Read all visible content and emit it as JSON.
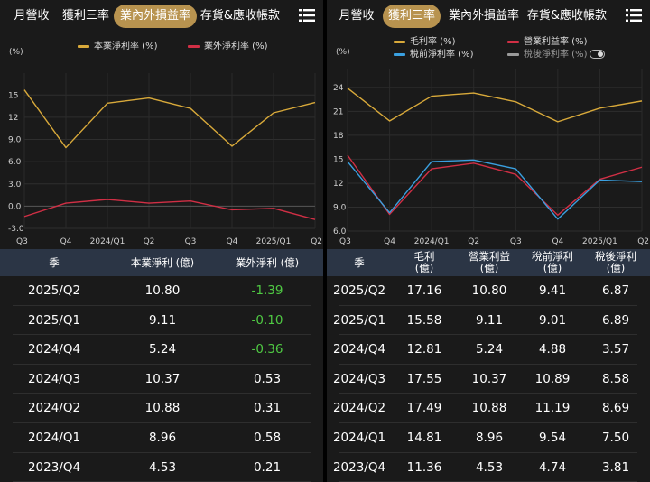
{
  "colors": {
    "accent": "#b8934f",
    "gold": "#d8a93a",
    "red": "#d12f45",
    "blue": "#3aa0e0",
    "gray": "#9a9a9a",
    "negative": "#4fc943",
    "header_bg": "#2b3545"
  },
  "left": {
    "tabs": [
      "月營收",
      "獲利三率",
      "業內外損益率",
      "存貨&應收帳款"
    ],
    "active_tab": 2,
    "menu_icon": "list-menu-icon",
    "legend": [
      {
        "label": "本業淨利率 (%)",
        "color": "#d8a93a"
      },
      {
        "label": "業外淨利率 (%)",
        "color": "#d12f45"
      }
    ],
    "unit": "(%)",
    "table": {
      "headers": [
        "季",
        "本業淨利 (億)",
        "業外淨利 (億)"
      ],
      "rows": [
        {
          "q": "2025/Q2",
          "a": "10.80",
          "b": "-1.39",
          "neg": true
        },
        {
          "q": "2025/Q1",
          "a": "9.11",
          "b": "-0.10",
          "neg": true
        },
        {
          "q": "2024/Q4",
          "a": "5.24",
          "b": "-0.36",
          "neg": true
        },
        {
          "q": "2024/Q3",
          "a": "10.37",
          "b": "0.53",
          "neg": false
        },
        {
          "q": "2024/Q2",
          "a": "10.88",
          "b": "0.31",
          "neg": false
        },
        {
          "q": "2024/Q1",
          "a": "8.96",
          "b": "0.58",
          "neg": false
        },
        {
          "q": "2023/Q4",
          "a": "4.53",
          "b": "0.21",
          "neg": false
        }
      ]
    }
  },
  "right": {
    "tabs": [
      "月營收",
      "獲利三率",
      "業內外損益率",
      "存貨&應收帳款"
    ],
    "active_tab": 1,
    "menu_icon": "list-menu-icon",
    "legend": [
      {
        "label": "毛利率 (%)",
        "color": "#d8a93a"
      },
      {
        "label": "營業利益率 (%)",
        "color": "#d12f45"
      },
      {
        "label": "稅前淨利率 (%)",
        "color": "#3aa0e0"
      },
      {
        "label": "稅後淨利率 (%)",
        "color": "#9a9a9a"
      }
    ],
    "unit": "(%)",
    "table": {
      "headers": [
        "季",
        "毛利\n(億)",
        "營業利益\n(億)",
        "稅前淨利\n(億)",
        "稅後淨利\n(億)"
      ],
      "rows": [
        [
          "2025/Q2",
          "17.16",
          "10.80",
          "9.41",
          "6.87"
        ],
        [
          "2025/Q1",
          "15.58",
          "9.11",
          "9.01",
          "6.89"
        ],
        [
          "2024/Q4",
          "12.81",
          "5.24",
          "4.88",
          "3.57"
        ],
        [
          "2024/Q3",
          "17.55",
          "10.37",
          "10.89",
          "8.58"
        ],
        [
          "2024/Q2",
          "17.49",
          "10.88",
          "11.19",
          "8.69"
        ],
        [
          "2024/Q1",
          "14.81",
          "8.96",
          "9.54",
          "7.50"
        ],
        [
          "2023/Q4",
          "11.36",
          "4.53",
          "4.74",
          "3.81"
        ]
      ]
    }
  },
  "chart_data": [
    {
      "type": "line",
      "x": [
        "Q3",
        "Q4",
        "2024/Q1",
        "Q2",
        "Q3",
        "Q4",
        "2025/Q1",
        "Q2"
      ],
      "series": [
        {
          "name": "本業淨利率 (%)",
          "values": [
            15.7,
            7.9,
            13.9,
            14.6,
            13.2,
            8.1,
            12.6,
            14.0
          ]
        },
        {
          "name": "業外淨利率 (%)",
          "values": [
            -1.4,
            0.4,
            0.9,
            0.4,
            0.7,
            -0.5,
            -0.3,
            -1.8
          ]
        }
      ],
      "yticks": [
        "15",
        "12",
        "9.0",
        "6.0",
        "3.0",
        "0.0",
        "-3.0"
      ],
      "ylim": [
        -3,
        16.5
      ]
    },
    {
      "type": "line",
      "x": [
        "Q3",
        "Q4",
        "2024/Q1",
        "Q2",
        "Q3",
        "Q4",
        "2025/Q1",
        "Q2"
      ],
      "series": [
        {
          "name": "毛利率 (%)",
          "values": [
            23.9,
            19.8,
            22.9,
            23.3,
            22.2,
            19.7,
            21.4,
            22.3
          ]
        },
        {
          "name": "營業利益率 (%)",
          "values": [
            15.5,
            8.1,
            13.8,
            14.5,
            13.1,
            8.0,
            12.5,
            14.0
          ]
        },
        {
          "name": "稅前淨利率 (%)",
          "values": [
            14.7,
            8.3,
            14.7,
            14.9,
            13.8,
            7.5,
            12.4,
            12.2
          ]
        }
      ],
      "yticks": [
        "24",
        "21",
        "18",
        "15",
        "12",
        "9.0",
        "6.0"
      ],
      "ylim": [
        6,
        25
      ]
    }
  ]
}
